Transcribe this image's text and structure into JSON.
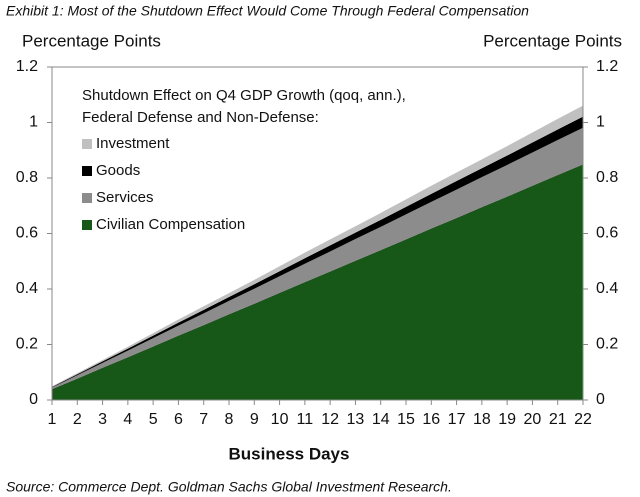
{
  "chart_data": {
    "type": "stacked_area",
    "title": "Exhibit 1: Most of the Shutdown Effect Would Come Through Federal Compensation",
    "source": "Source: Commerce Dept. Goldman Sachs Global Investment Research.",
    "y_label": "Percentage Points",
    "y2_label": "Percentage Points",
    "x_label": "Business Days",
    "legend_title": [
      "Shutdown Effect on Q4 GDP Growth (qoq, ann.),",
      "Federal Defense and Non-Defense:"
    ],
    "x": [
      1,
      2,
      3,
      4,
      5,
      6,
      7,
      8,
      9,
      10,
      11,
      12,
      13,
      14,
      15,
      16,
      17,
      18,
      19,
      20,
      21,
      22
    ],
    "xlim": [
      1,
      22
    ],
    "xticks": [
      1,
      2,
      3,
      4,
      5,
      6,
      7,
      8,
      9,
      10,
      11,
      12,
      13,
      14,
      15,
      16,
      17,
      18,
      19,
      20,
      21,
      22
    ],
    "ylim": [
      0,
      1.2
    ],
    "yticks": [
      0,
      0.2,
      0.4,
      0.6,
      0.8,
      1,
      1.2
    ],
    "y2lim": [
      0,
      1.2
    ],
    "y2ticks": [
      0,
      0.2,
      0.4,
      0.6,
      0.8,
      1,
      1.2
    ],
    "series": [
      {
        "name": "Investment",
        "color": "#c0c0c0",
        "values": [
          0.002,
          0.004,
          0.005,
          0.007,
          0.009,
          0.011,
          0.013,
          0.014,
          0.016,
          0.018,
          0.02,
          0.022,
          0.023,
          0.025,
          0.027,
          0.029,
          0.031,
          0.032,
          0.034,
          0.036,
          0.038,
          0.04
        ]
      },
      {
        "name": "Goods",
        "color": "#000000",
        "values": [
          0.002,
          0.004,
          0.005,
          0.007,
          0.009,
          0.011,
          0.013,
          0.014,
          0.016,
          0.018,
          0.02,
          0.022,
          0.023,
          0.025,
          0.027,
          0.029,
          0.031,
          0.032,
          0.034,
          0.036,
          0.038,
          0.04
        ]
      },
      {
        "name": "Services",
        "color": "#8c8c8c",
        "values": [
          0.006,
          0.012,
          0.018,
          0.024,
          0.03,
          0.036,
          0.042,
          0.048,
          0.054,
          0.06,
          0.066,
          0.072,
          0.078,
          0.084,
          0.09,
          0.096,
          0.102,
          0.108,
          0.114,
          0.12,
          0.126,
          0.132
        ]
      },
      {
        "name": "Civilian Compensation",
        "color": "#175717",
        "values": [
          0.039,
          0.077,
          0.116,
          0.154,
          0.193,
          0.232,
          0.27,
          0.309,
          0.347,
          0.386,
          0.425,
          0.463,
          0.502,
          0.54,
          0.579,
          0.618,
          0.656,
          0.695,
          0.733,
          0.772,
          0.811,
          0.849
        ]
      }
    ]
  }
}
